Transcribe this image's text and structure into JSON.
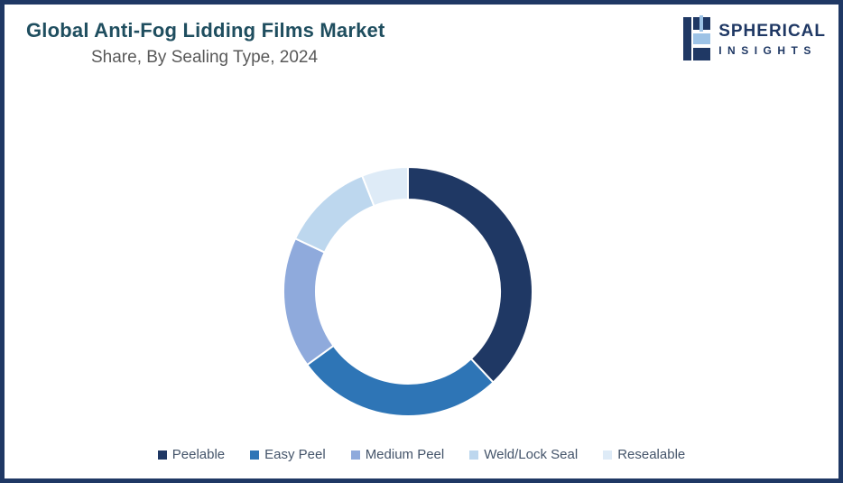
{
  "header": {
    "title": "Global Anti-Fog Lidding Films Market",
    "subtitle": "Share, By Sealing Type, 2024"
  },
  "logo": {
    "line1": "SPHERICAL",
    "line2": "INSIGHTS",
    "brand_color": "#1F3864",
    "accent_color": "#9DC3E6"
  },
  "chart_data": {
    "type": "pie",
    "subtype": "donut",
    "title": "Global Anti-Fog Lidding Films Market Share, By Sealing Type, 2024",
    "categories": [
      "Peelable",
      "Easy Peel",
      "Medium Peel",
      "Weld/Lock Seal",
      "Resealable"
    ],
    "values": [
      38,
      27,
      17,
      12,
      6
    ],
    "unit": "percent",
    "colors": [
      "#1F3864",
      "#2E75B6",
      "#8FAADC",
      "#BDD7EE",
      "#DEEBF7"
    ],
    "legend_position": "bottom",
    "start_angle_deg": 0,
    "direction": "clockwise",
    "donut_hole_ratio": 0.74,
    "segment_border_color": "#FFFFFF"
  }
}
